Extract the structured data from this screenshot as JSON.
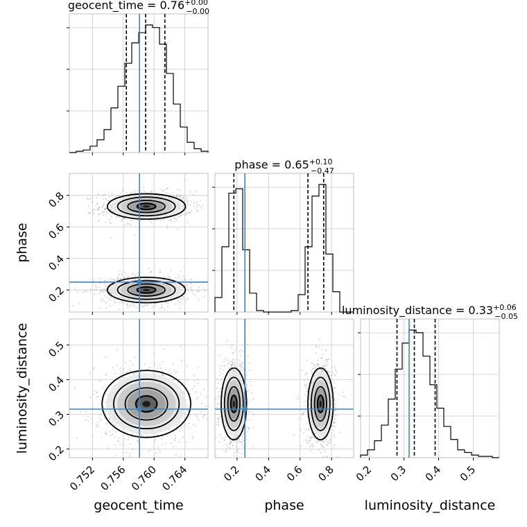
{
  "chart_data": {
    "type": "corner",
    "parameters": [
      {
        "name": "geocent_time",
        "label": "geocent_time",
        "title": {
          "base": "geocent_time = 0.76",
          "sup": "+0.00",
          "sub": "−0.00"
        },
        "range": [
          0.749,
          0.767
        ],
        "ticks": [
          0.752,
          0.756,
          0.76,
          0.764
        ],
        "tick_labels": [
          "0.752",
          "0.756",
          "0.760",
          "0.764"
        ],
        "truth": 0.7581,
        "quantiles": [
          0.7564,
          0.7589,
          0.7614
        ]
      },
      {
        "name": "phase",
        "label": "phase",
        "title": {
          "base": "phase = 0.65",
          "sup": "+0.10",
          "sub": "−0.47"
        },
        "range": [
          0.06,
          0.94
        ],
        "ticks": [
          0.2,
          0.4,
          0.6,
          0.8
        ],
        "tick_labels": [
          "0.2",
          "0.4",
          "0.6",
          "0.8"
        ],
        "truth": 0.25,
        "quantiles": [
          0.18,
          0.65,
          0.75
        ]
      },
      {
        "name": "luminosity_distance",
        "label": "luminosity_distance",
        "title": {
          "base": "luminosity_distance = 0.33",
          "sup": "+0.06",
          "sub": "−0.05"
        },
        "range": [
          0.175,
          0.575
        ],
        "ticks": [
          0.2,
          0.3,
          0.4,
          0.5
        ],
        "tick_labels": [
          "0.2",
          "0.3",
          "0.4",
          "0.5"
        ],
        "truth": 0.315,
        "quantiles": [
          0.28,
          0.33,
          0.39
        ]
      }
    ],
    "histograms": [
      {
        "param": "geocent_time",
        "bin_edges_start": 0.749,
        "bin_width": 0.0009,
        "counts": [
          0,
          1,
          2,
          5,
          10,
          18,
          35,
          52,
          70,
          86,
          94,
          100,
          98,
          85,
          62,
          38,
          20,
          8,
          3,
          1
        ]
      },
      {
        "param": "phase",
        "bin_edges_start": 0.06,
        "bin_width": 0.044,
        "counts": [
          10,
          45,
          82,
          85,
          43,
          13,
          1,
          0,
          0,
          0,
          0,
          1,
          12,
          45,
          80,
          88,
          40,
          14,
          0,
          0
        ]
      },
      {
        "param": "luminosity_distance",
        "bin_edges_start": 0.175,
        "bin_width": 0.02,
        "counts": [
          2,
          6,
          13,
          25,
          45,
          68,
          88,
          98,
          96,
          78,
          56,
          38,
          24,
          14,
          6,
          4,
          2,
          1,
          1,
          0
        ]
      }
    ],
    "posterior_modes": [
      {
        "param_x": "geocent_time",
        "param_y": "phase",
        "center": [
          0.759,
          0.73
        ],
        "sigma": [
          0.0022,
          0.035
        ]
      },
      {
        "param_x": "geocent_time",
        "param_y": "phase",
        "center": [
          0.759,
          0.2
        ],
        "sigma": [
          0.0022,
          0.035
        ]
      },
      {
        "param_x": "geocent_time",
        "param_y": "luminosity_distance",
        "center": [
          0.759,
          0.33
        ],
        "sigma": [
          0.0025,
          0.042
        ]
      },
      {
        "param_x": "phase",
        "param_y": "luminosity_distance",
        "center": [
          0.18,
          0.33
        ],
        "sigma": [
          0.035,
          0.045
        ]
      },
      {
        "param_x": "phase",
        "param_y": "luminosity_distance",
        "center": [
          0.73,
          0.33
        ],
        "sigma": [
          0.035,
          0.045
        ]
      }
    ],
    "grid": true,
    "truth_color": "#4682b4",
    "contour_color": "#000000",
    "scatter_color": "#9e9e9e"
  }
}
